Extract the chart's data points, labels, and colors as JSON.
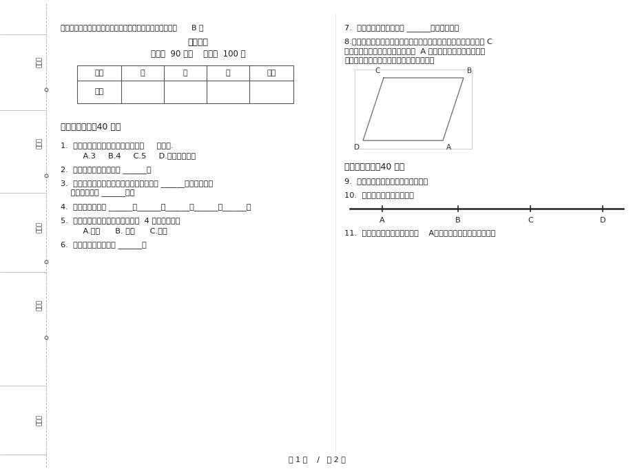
{
  "bg_color": "#ffffff",
  "title_line": "最新人教版同步摸底四年级上学期小学数学二单元模拟试卷      B 卷",
  "subtitle": "课后练习",
  "time_line": "时间：  90 分钟    满分：  100 分",
  "table_headers": [
    "题号",
    "一",
    "二",
    "三",
    "总分"
  ],
  "table_row_label": "得分",
  "section1_title": "一、基础练习（40 分）",
  "section2_title": "二、综合练习（40 分）",
  "q1": "1.  长方形上剪去一个角，可能剩下（     ）个角.",
  "q1_choices": "    A.3     B.4     C.5     D.以上都有可能",
  "q2": "2.  正方形的两组对边互相 ______。",
  "q3a": "3.  过直线外一点作已知直线的垂线，可以作 ______条；过直线上",
  "q3b": "    一点，可以作 ______条。",
  "q4": "4.  我们学过的角有 ______、______、______、______和______。",
  "q5": "5.  两条直线互相垂直，相交而成的  4 个角是（）。",
  "q5_choices": "    A.锐角      B. 钝角      C.直角",
  "q6": "6.  平行线间的距离处处 ______。",
  "q7": "7.  对于平行线，一定要在 ______范畴内研究。",
  "q8a": "8.（变式题）某农场有一片平行四边形的果园（如图所示），现从 C",
  "q8b": "处开始安装自来水管，横穿果园到  A 处对果树进行灌溉。请你设",
  "q8c": "计，怎样安装最节省材料？说出你的理由。",
  "q9": "9.  连接两点的所有线中，线段最短。",
  "q10": "10.  下图中一共有几条线段？",
  "q11": "11.  如图，要从小河引水到村庄    A，请设计并作出一最佳路线。",
  "page_footer": "第 1 页    /   共 2 页",
  "margin_labels": [
    "考号：",
    "考场：",
    "姓名：",
    "班级：",
    "学校："
  ],
  "line_labels": [
    "A",
    "B",
    "C",
    "D"
  ]
}
